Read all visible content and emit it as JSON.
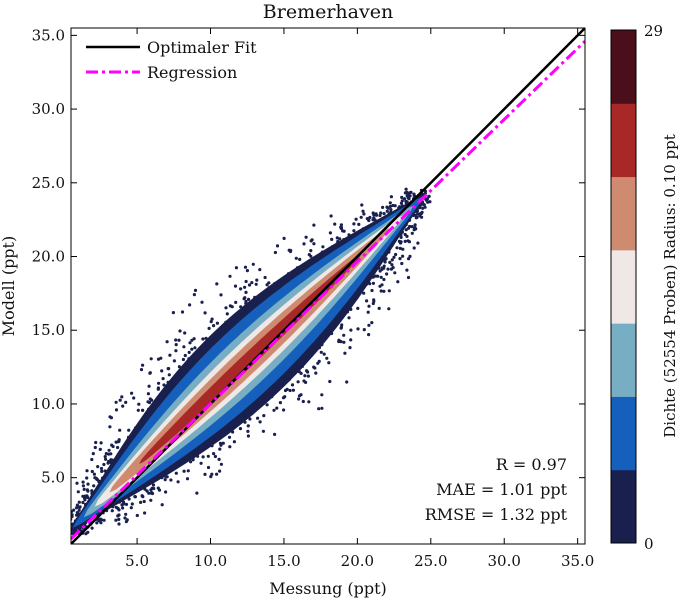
{
  "chart_data": {
    "type": "scatter",
    "title": "Bremerhaven",
    "xlabel": "Messung (ppt)",
    "ylabel": "Modell (ppt)",
    "xlim": [
      0.5,
      35.5
    ],
    "ylim": [
      0.5,
      35.5
    ],
    "xticks": [
      "5.0",
      "10.0",
      "15.0",
      "20.0",
      "25.0",
      "30.0",
      "35.0"
    ],
    "yticks": [
      "5.0",
      "10.0",
      "15.0",
      "20.0",
      "25.0",
      "30.0",
      "35.0"
    ],
    "grid": false,
    "legend_position": "top-left",
    "series": [
      {
        "name": "Optimaler Fit",
        "style": "solid",
        "color": "#000000",
        "slope": 1.0,
        "intercept": 0.0
      },
      {
        "name": "Regression",
        "style": "dash-dot",
        "color": "#ff00ff",
        "slope": 0.965,
        "intercept": 0.35
      }
    ],
    "density": {
      "description_axis": "Dichte (52554 Proben) Radius: 0.10 ppt",
      "min_label": "0",
      "max_label": "29",
      "min": 0,
      "max": 29,
      "levels": [
        {
          "threshold": 0,
          "color": "#19204d"
        },
        {
          "threshold": 4,
          "color": "#1560bd"
        },
        {
          "threshold": 8,
          "color": "#77aec4"
        },
        {
          "threshold": 12,
          "color": "#efe8e6"
        },
        {
          "threshold": 17,
          "color": "#cf8b70"
        },
        {
          "threshold": 21,
          "color": "#a82828"
        },
        {
          "threshold": 25,
          "color": "#4a0f1a"
        }
      ],
      "cloud_x_range": [
        0.8,
        24.5
      ],
      "cloud_peak_center": [
        15.5,
        15.6
      ]
    },
    "stats": [
      {
        "label": "R = 0.97"
      },
      {
        "label": "MAE = 1.01 ppt"
      },
      {
        "label": "RMSE = 1.32 ppt"
      }
    ]
  }
}
